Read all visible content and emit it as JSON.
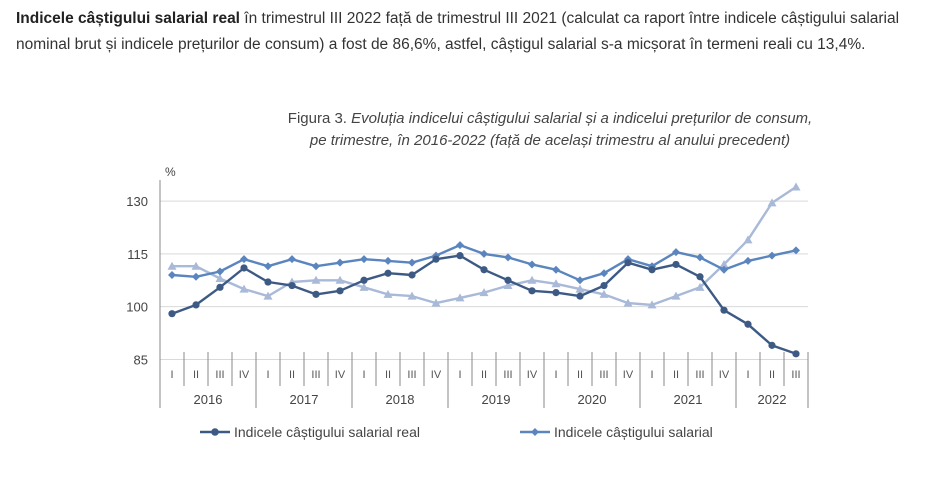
{
  "intro": {
    "bold": "Indicele câștigului salarial real",
    "rest": " în trimestrul III 2022 față de trimestrul III 2021 (calculat ca raport între indicele câștigului salarial nominal brut și indicele prețurilor de consum) a fost de 86,6%, astfel, câștigul salarial s-a micșorat în termeni reali cu 13,4%."
  },
  "chart_data": {
    "type": "line",
    "title_label": "Figura 3.",
    "title_line1": "Evoluția indicelui câștigului salarial și a indicelui prețurilor de consum,",
    "title_line2": "pe trimestre, în 2016-2022 (față de același trimestru al anului precedent)",
    "ylabel": "%",
    "ylim": [
      82,
      136
    ],
    "yticks": [
      85,
      100,
      115,
      130
    ],
    "quarters": [
      "I",
      "II",
      "III",
      "IV",
      "I",
      "II",
      "III",
      "IV",
      "I",
      "II",
      "III",
      "IV",
      "I",
      "II",
      "III",
      "IV",
      "I",
      "II",
      "III",
      "IV",
      "I",
      "II",
      "III",
      "IV",
      "I",
      "II",
      "III"
    ],
    "years": [
      "2016",
      "2017",
      "2018",
      "2019",
      "2020",
      "2021",
      "2022"
    ],
    "series": [
      {
        "name": "Indicele câștigului salarial real",
        "color": "#3d5a85",
        "marker": "circle",
        "values": [
          98,
          100.5,
          105.5,
          111,
          107,
          106,
          103.5,
          104.5,
          107.5,
          109.5,
          109,
          113.5,
          114.5,
          110.5,
          107.5,
          104.5,
          104,
          103,
          106,
          112.5,
          110.5,
          112,
          108.5,
          99,
          95,
          89,
          86.6
        ]
      },
      {
        "name": "Indicele câștigului salarial",
        "color": "#5b85be",
        "marker": "diamond",
        "values": [
          109,
          108.5,
          110,
          113.5,
          111.5,
          113.5,
          111.5,
          112.5,
          113.5,
          113,
          112.5,
          114.5,
          117.5,
          115,
          114,
          112,
          110.5,
          107.5,
          109.5,
          113.5,
          111.5,
          115.5,
          114,
          110.5,
          113,
          114.5,
          116
        ]
      },
      {
        "name": "",
        "color": "#a9b9d8",
        "marker": "triangle",
        "values": [
          111.5,
          111.5,
          108,
          105,
          103,
          107,
          107.5,
          107.5,
          105.5,
          103.5,
          103,
          101,
          102.5,
          104,
          106,
          107.5,
          106.5,
          105,
          103.5,
          101,
          100.5,
          103,
          105.5,
          112,
          119,
          129.5,
          134
        ]
      }
    ]
  }
}
